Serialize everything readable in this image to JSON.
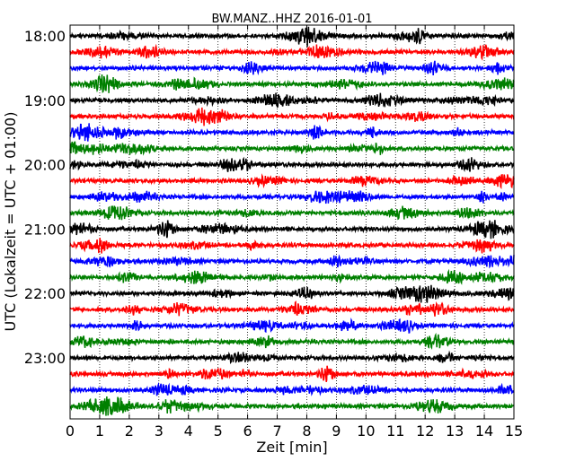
{
  "chart_data": {
    "type": "line",
    "chart_kind": "helicorder",
    "title": "BW.MANZ..HHZ 2016-01-01",
    "xlabel": "Zeit  [min]",
    "ylabel": "UTC (Lokalzeit = UTC + 01:00)",
    "xlim": [
      0,
      15
    ],
    "x_ticks": [
      "0",
      "1",
      "2",
      "3",
      "4",
      "5",
      "6",
      "7",
      "8",
      "9",
      "10",
      "11",
      "12",
      "13",
      "14",
      "15"
    ],
    "y_tick_labels": [
      "18:00",
      "19:00",
      "20:00",
      "21:00",
      "22:00",
      "23:00"
    ],
    "trace_minutes": 15,
    "traces_per_hour": 4,
    "trace_count": 24,
    "trace_start_times": [
      "18:00",
      "18:15",
      "18:30",
      "18:45",
      "19:00",
      "19:15",
      "19:30",
      "19:45",
      "20:00",
      "20:15",
      "20:30",
      "20:45",
      "21:00",
      "21:15",
      "21:30",
      "21:45",
      "22:00",
      "22:15",
      "22:30",
      "22:45",
      "23:00",
      "23:15",
      "23:30",
      "23:45"
    ],
    "color_cycle": [
      "#000000",
      "#ff0000",
      "#0000ff",
      "#008000"
    ],
    "grid": "vertical dotted lines at each minute"
  }
}
